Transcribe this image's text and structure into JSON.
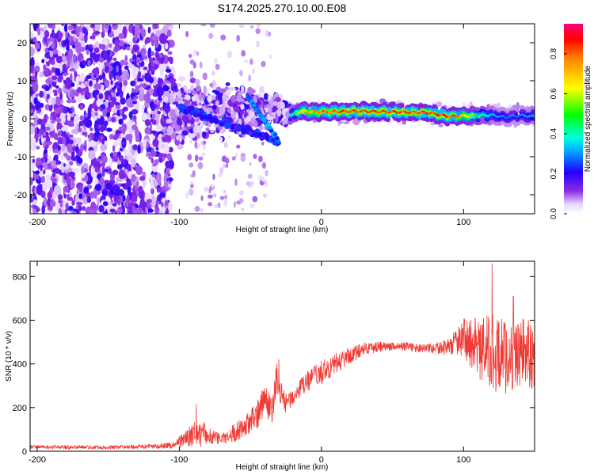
{
  "title": "S174.2025.270.10.00.E08",
  "chart_data": [
    {
      "type": "heatmap",
      "name": "spectrogram",
      "xlabel": "Height of straight line (km)",
      "ylabel": "Frequency (Hz)",
      "xlim": [
        -205,
        150
      ],
      "ylim": [
        -25,
        25
      ],
      "xticks": [
        -200,
        -100,
        0,
        100
      ],
      "yticks": [
        -20,
        -10,
        0,
        10,
        20
      ],
      "colorbar": {
        "label": "Normalized spectral amplitude",
        "range": [
          0,
          0.95
        ],
        "ticks": [
          "0.0",
          "0.2",
          "0.4",
          "0.6",
          "0.8"
        ],
        "tick_values": [
          0.0,
          0.2,
          0.4,
          0.6,
          0.8
        ]
      },
      "features": {
        "noise_region_x": [
          -205,
          -105
        ],
        "transition_x": [
          -105,
          -20
        ],
        "diagonal_streak": {
          "x": [
            -52,
            -30
          ],
          "y": [
            6,
            -6
          ]
        },
        "converging_streak": {
          "x": [
            -100,
            -30
          ],
          "y": [
            3,
            -6
          ]
        },
        "signal_line": {
          "x": [
            -20,
            -15,
            0,
            25,
            50,
            75,
            90,
            100,
            110,
            120,
            130,
            140,
            150
          ],
          "y": [
            1,
            2,
            1.8,
            2,
            1.8,
            1.6,
            0.6,
            0.8,
            0.8,
            1,
            0.4,
            0.9,
            0.6
          ],
          "amplitude": [
            0.4,
            0.7,
            0.85,
            0.9,
            0.9,
            0.88,
            0.9,
            0.75,
            0.5,
            0.35,
            0.3,
            0.3,
            0.35
          ]
        }
      }
    },
    {
      "type": "line",
      "name": "snr",
      "xlabel": "Height of straight line (km)",
      "ylabel": "SNR (10 * v/v)",
      "xlim": [
        -205,
        150
      ],
      "ylim": [
        0,
        870
      ],
      "xticks": [
        -200,
        -100,
        0,
        100
      ],
      "yticks": [
        0,
        200,
        400,
        600,
        800
      ],
      "color": "#f03a34",
      "envelope": {
        "x": [
          -205,
          -150,
          -120,
          -105,
          -95,
          -85,
          -80,
          -70,
          -60,
          -50,
          -45,
          -40,
          -35,
          -31,
          -28,
          -25,
          -20,
          -10,
          0,
          10,
          20,
          30,
          40,
          50,
          60,
          70,
          80,
          90,
          95,
          100,
          110,
          120,
          130,
          140,
          150
        ],
        "mean": [
          20,
          18,
          22,
          28,
          60,
          90,
          70,
          55,
          90,
          130,
          170,
          250,
          180,
          320,
          260,
          220,
          250,
          320,
          360,
          400,
          440,
          470,
          480,
          480,
          480,
          470,
          470,
          480,
          500,
          520,
          470,
          450,
          430,
          460,
          440
        ],
        "amp": [
          8,
          8,
          10,
          15,
          40,
          70,
          40,
          25,
          45,
          55,
          70,
          80,
          60,
          120,
          60,
          45,
          40,
          50,
          55,
          50,
          40,
          30,
          25,
          20,
          20,
          20,
          25,
          40,
          60,
          90,
          140,
          180,
          170,
          160,
          160
        ]
      },
      "peaks": [
        {
          "x": -88,
          "y": 215
        },
        {
          "x": -30,
          "y": 420
        },
        {
          "x": 120,
          "y": 860
        },
        {
          "x": 135,
          "y": 710
        }
      ]
    }
  ]
}
